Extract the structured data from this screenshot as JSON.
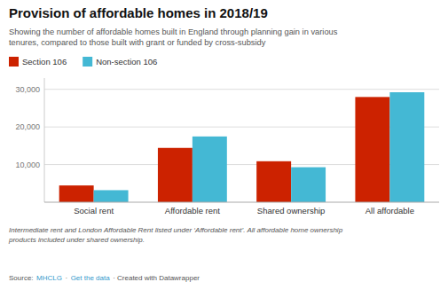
{
  "chart_data": {
    "type": "bar",
    "title": "Provision of affordable homes in 2018/19",
    "subtitle": "Showing the number of affordable homes built in England through planning gain in various\ntenures, compared to those built with grant or funded by cross-subsidy",
    "categories": [
      "Social rent",
      "Affordable rent",
      "Shared ownership",
      "All affordable"
    ],
    "series": [
      {
        "name": "Section 106",
        "color": "#cc2200",
        "values": [
          4453,
          14433,
          10884,
          27963
        ]
      },
      {
        "name": "Non-section 106",
        "color": "#44b8d4",
        "values": [
          3197,
          17474,
          9298,
          29222
        ]
      }
    ],
    "ylim": [
      0,
      33000
    ],
    "yticks": [
      {
        "value": 10000,
        "label": "10,000"
      },
      {
        "value": 20000,
        "label": "20,000"
      },
      {
        "value": 30000,
        "label": "30,000"
      }
    ],
    "grid": true,
    "legend": "top-left",
    "footnote": "Intermediate rent and London Affordable Rent listed under ‘Affordable rent’. All affordable home ownership\nproducts included under shared ownership.",
    "source": [
      "Source:",
      "MHCLG",
      "·",
      "Get the data",
      "· Created with Datawrapper"
    ]
  }
}
